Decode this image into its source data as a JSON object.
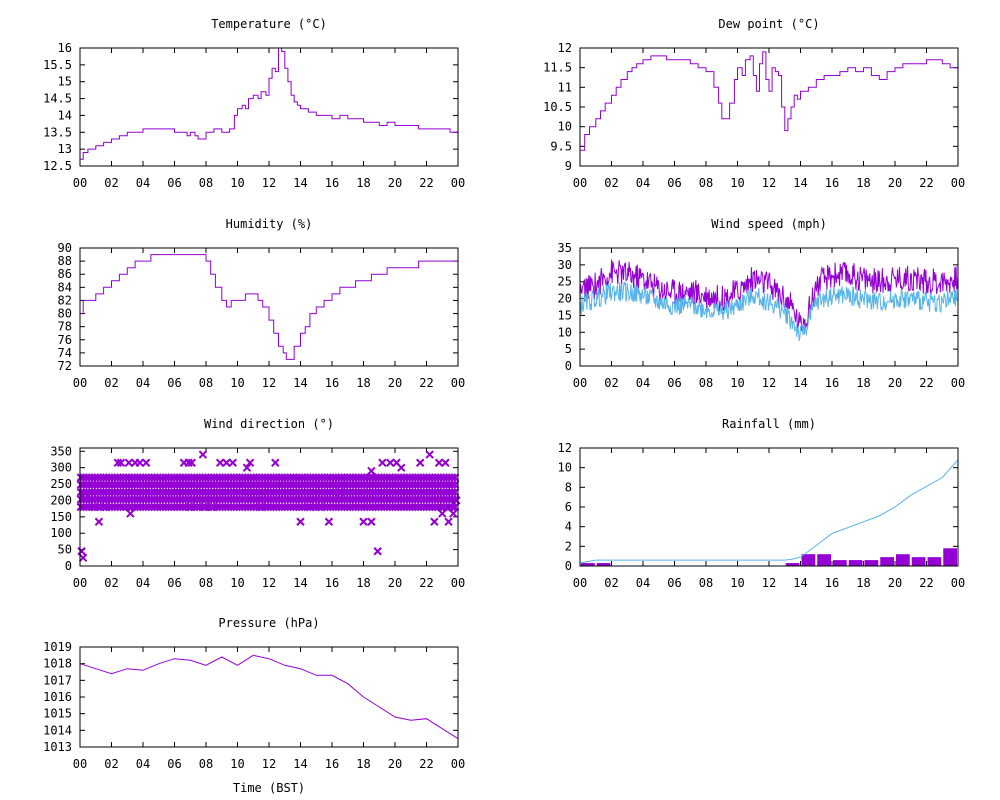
{
  "colors": {
    "primary": "#9400d3",
    "secondary": "#56b4e9",
    "axis": "#000000"
  },
  "chart_data": [
    {
      "id": "temperature",
      "type": "line",
      "title": "Temperature (°C)",
      "xlabel": "",
      "ylabel": "",
      "xlim": [
        0,
        24
      ],
      "xticks": [
        "00",
        "02",
        "04",
        "06",
        "08",
        "10",
        "12",
        "14",
        "16",
        "18",
        "20",
        "22",
        "00"
      ],
      "ylim": [
        12.5,
        16
      ],
      "yticks": [
        "12.5",
        "13",
        "13.5",
        "14",
        "14.5",
        "15",
        "15.5",
        "16"
      ],
      "ytick_values": [
        12.5,
        13,
        13.5,
        14,
        14.5,
        15,
        15.5,
        16
      ],
      "series": [
        {
          "name": "temperature",
          "style": "step",
          "color": "#9400d3",
          "x": [
            0,
            0.2,
            0.5,
            1.0,
            1.5,
            2.0,
            2.5,
            3.0,
            3.5,
            4.0,
            5.0,
            6.0,
            6.5,
            6.8,
            7.0,
            7.3,
            7.5,
            8.0,
            8.5,
            9.0,
            9.5,
            9.8,
            10.0,
            10.3,
            10.5,
            10.7,
            11.0,
            11.3,
            11.5,
            11.8,
            12.0,
            12.2,
            12.4,
            12.6,
            12.8,
            13.0,
            13.2,
            13.4,
            13.6,
            13.8,
            14.0,
            14.5,
            15.0,
            15.5,
            16.0,
            16.5,
            17.0,
            17.5,
            18.0,
            18.5,
            19.0,
            19.5,
            20.0,
            20.5,
            21.0,
            21.5,
            22.0,
            22.5,
            23.0,
            23.5,
            24.0
          ],
          "y": [
            12.7,
            12.9,
            13.0,
            13.1,
            13.2,
            13.3,
            13.4,
            13.5,
            13.5,
            13.6,
            13.6,
            13.5,
            13.5,
            13.4,
            13.5,
            13.4,
            13.3,
            13.5,
            13.6,
            13.5,
            13.6,
            14.0,
            14.2,
            14.3,
            14.2,
            14.5,
            14.6,
            14.5,
            14.7,
            14.6,
            15.1,
            15.4,
            15.3,
            16.0,
            15.9,
            15.4,
            15.0,
            14.6,
            14.4,
            14.3,
            14.2,
            14.1,
            14.0,
            14.0,
            13.9,
            14.0,
            13.9,
            13.9,
            13.8,
            13.8,
            13.7,
            13.8,
            13.7,
            13.7,
            13.7,
            13.6,
            13.6,
            13.6,
            13.6,
            13.5,
            13.6
          ]
        }
      ]
    },
    {
      "id": "dewpoint",
      "type": "line",
      "title": "Dew point (°C)",
      "xlabel": "",
      "ylabel": "",
      "xlim": [
        0,
        24
      ],
      "xticks": [
        "00",
        "02",
        "04",
        "06",
        "08",
        "10",
        "12",
        "14",
        "16",
        "18",
        "20",
        "22",
        "00"
      ],
      "ylim": [
        9,
        12
      ],
      "yticks": [
        "9",
        "9.5",
        "10",
        "10.5",
        "11",
        "11.5",
        "12"
      ],
      "ytick_values": [
        9,
        9.5,
        10,
        10.5,
        11,
        11.5,
        12
      ],
      "series": [
        {
          "name": "dewpoint",
          "style": "step",
          "color": "#9400d3",
          "x": [
            0,
            0.3,
            0.6,
            1.0,
            1.3,
            1.6,
            2.0,
            2.3,
            2.6,
            3.0,
            3.3,
            3.6,
            4.0,
            4.5,
            5.0,
            5.5,
            6.0,
            6.5,
            7.0,
            7.5,
            8.0,
            8.5,
            8.8,
            9.0,
            9.2,
            9.5,
            9.8,
            10.0,
            10.3,
            10.5,
            10.8,
            11.0,
            11.2,
            11.4,
            11.6,
            11.8,
            12.0,
            12.2,
            12.4,
            12.6,
            12.8,
            13.0,
            13.2,
            13.4,
            13.6,
            13.8,
            14.0,
            14.5,
            15.0,
            15.5,
            16.0,
            16.5,
            17.0,
            17.5,
            18.0,
            18.5,
            19.0,
            19.5,
            20.0,
            20.5,
            21.0,
            21.5,
            22.0,
            22.5,
            23.0,
            23.5,
            24.0
          ],
          "y": [
            9.4,
            9.8,
            10.0,
            10.2,
            10.4,
            10.6,
            10.8,
            11.0,
            11.2,
            11.4,
            11.5,
            11.6,
            11.7,
            11.8,
            11.8,
            11.7,
            11.7,
            11.7,
            11.6,
            11.5,
            11.4,
            11.0,
            10.6,
            10.2,
            10.2,
            10.6,
            11.2,
            11.5,
            11.3,
            11.7,
            11.8,
            11.3,
            10.9,
            11.6,
            11.9,
            11.2,
            10.9,
            11.5,
            11.4,
            11.3,
            10.5,
            9.9,
            10.2,
            10.5,
            10.8,
            10.7,
            10.9,
            11.0,
            11.2,
            11.3,
            11.3,
            11.4,
            11.5,
            11.4,
            11.5,
            11.3,
            11.2,
            11.4,
            11.5,
            11.6,
            11.6,
            11.6,
            11.7,
            11.7,
            11.6,
            11.5,
            11.8
          ]
        }
      ]
    },
    {
      "id": "humidity",
      "type": "line",
      "title": "Humidity (%)",
      "xlabel": "",
      "ylabel": "",
      "xlim": [
        0,
        24
      ],
      "xticks": [
        "00",
        "02",
        "04",
        "06",
        "08",
        "10",
        "12",
        "14",
        "16",
        "18",
        "20",
        "22",
        "00"
      ],
      "ylim": [
        72,
        90
      ],
      "yticks": [
        "72",
        "74",
        "76",
        "78",
        "80",
        "82",
        "84",
        "86",
        "88",
        "90"
      ],
      "ytick_values": [
        72,
        74,
        76,
        78,
        80,
        82,
        84,
        86,
        88,
        90
      ],
      "series": [
        {
          "name": "humidity",
          "style": "step",
          "color": "#9400d3",
          "x": [
            0,
            0.2,
            0.5,
            1.0,
            1.5,
            2.0,
            2.5,
            3.0,
            3.5,
            4.0,
            4.5,
            5.0,
            6.0,
            7.0,
            7.5,
            8.0,
            8.3,
            8.6,
            9.0,
            9.3,
            9.6,
            10.0,
            10.5,
            11.0,
            11.3,
            11.6,
            12.0,
            12.3,
            12.6,
            12.9,
            13.1,
            13.3,
            13.6,
            14.0,
            14.3,
            14.6,
            15.0,
            15.5,
            16.0,
            16.5,
            17.0,
            17.5,
            18.0,
            18.5,
            19.0,
            19.5,
            20.0,
            20.5,
            21.0,
            21.5,
            22.0,
            22.5,
            23.0,
            23.5,
            24.0
          ],
          "y": [
            80,
            82,
            82,
            83,
            84,
            85,
            86,
            87,
            88,
            88,
            89,
            89,
            89,
            89,
            89,
            88,
            86,
            84,
            82,
            81,
            82,
            82,
            83,
            83,
            82,
            81,
            79,
            77,
            75,
            74,
            73,
            73,
            75,
            77,
            78,
            80,
            81,
            82,
            83,
            84,
            84,
            85,
            85,
            86,
            86,
            87,
            87,
            87,
            87,
            88,
            88,
            88,
            88,
            88,
            89
          ]
        }
      ]
    },
    {
      "id": "windspeed",
      "type": "line",
      "title": "Wind speed (mph)",
      "xlabel": "",
      "ylabel": "",
      "xlim": [
        0,
        24
      ],
      "xticks": [
        "00",
        "02",
        "04",
        "06",
        "08",
        "10",
        "12",
        "14",
        "16",
        "18",
        "20",
        "22",
        "00"
      ],
      "ylim": [
        0,
        35
      ],
      "yticks": [
        "0",
        "5",
        "10",
        "15",
        "20",
        "25",
        "30",
        "35"
      ],
      "ytick_values": [
        0,
        5,
        10,
        15,
        20,
        25,
        30,
        35
      ],
      "series": [
        {
          "name": "gust",
          "color": "#9400d3",
          "noise": 4,
          "x": [
            0,
            1,
            2,
            3,
            4,
            5,
            6,
            7,
            8,
            9,
            10,
            11,
            12,
            13,
            13.5,
            14,
            14.5,
            15,
            16,
            17,
            18,
            19,
            20,
            21,
            22,
            23,
            24
          ],
          "y": [
            22,
            24,
            28,
            27,
            26,
            23,
            22,
            22,
            21,
            20,
            22,
            26,
            24,
            20,
            17,
            12,
            16,
            24,
            27,
            27,
            26,
            25,
            26,
            26,
            25,
            25,
            26
          ]
        },
        {
          "name": "speed",
          "color": "#56b4e9",
          "noise": 3,
          "x": [
            0,
            1,
            2,
            3,
            4,
            5,
            6,
            7,
            8,
            9,
            10,
            11,
            12,
            13,
            13.5,
            14,
            14.5,
            15,
            16,
            17,
            18,
            19,
            20,
            21,
            22,
            23,
            24
          ],
          "y": [
            18,
            20,
            22,
            22,
            21,
            19,
            18,
            18,
            17,
            16,
            18,
            21,
            19,
            16,
            13,
            9,
            13,
            19,
            21,
            21,
            20,
            19,
            20,
            20,
            19,
            19,
            20
          ]
        }
      ]
    },
    {
      "id": "winddirection",
      "type": "scatter",
      "title": "Wind direction (°)",
      "xlabel": "",
      "ylabel": "",
      "xlim": [
        0,
        24
      ],
      "xticks": [
        "00",
        "02",
        "04",
        "06",
        "08",
        "10",
        "12",
        "14",
        "16",
        "18",
        "20",
        "22",
        "00"
      ],
      "ylim": [
        0,
        360
      ],
      "yticks": [
        "0",
        "50",
        "100",
        "150",
        "200",
        "250",
        "300",
        "350"
      ],
      "ytick_values": [
        0,
        50,
        100,
        150,
        200,
        250,
        300,
        350
      ],
      "bands": [
        180,
        203,
        225,
        248,
        270
      ],
      "points": [
        [
          0.1,
          45
        ],
        [
          0.2,
          25
        ],
        [
          0.3,
          205
        ],
        [
          0.9,
          180
        ],
        [
          1.2,
          135
        ],
        [
          1.6,
          180
        ],
        [
          2.4,
          315
        ],
        [
          2.6,
          315
        ],
        [
          3.1,
          315
        ],
        [
          3.5,
          315
        ],
        [
          3.8,
          315
        ],
        [
          4.2,
          315
        ],
        [
          3.2,
          160
        ],
        [
          5.1,
          180
        ],
        [
          6.6,
          315
        ],
        [
          6.9,
          315
        ],
        [
          7.1,
          315
        ],
        [
          7.0,
          180
        ],
        [
          7.8,
          340
        ],
        [
          7.9,
          180
        ],
        [
          8.4,
          180
        ],
        [
          8.9,
          315
        ],
        [
          9.3,
          315
        ],
        [
          9.7,
          315
        ],
        [
          10.6,
          300
        ],
        [
          10.8,
          315
        ],
        [
          11.5,
          180
        ],
        [
          12.1,
          180
        ],
        [
          12.4,
          315
        ],
        [
          14.0,
          135
        ],
        [
          14.6,
          180
        ],
        [
          15.3,
          180
        ],
        [
          15.8,
          135
        ],
        [
          16.5,
          225
        ],
        [
          18.0,
          135
        ],
        [
          18.5,
          135
        ],
        [
          18.9,
          45
        ],
        [
          18.5,
          290
        ],
        [
          19.2,
          315
        ],
        [
          19.7,
          315
        ],
        [
          20.1,
          315
        ],
        [
          20.4,
          300
        ],
        [
          21.6,
          315
        ],
        [
          22.2,
          340
        ],
        [
          22.5,
          135
        ],
        [
          22.8,
          315
        ],
        [
          23.2,
          315
        ],
        [
          23.0,
          160
        ],
        [
          23.4,
          135
        ],
        [
          23.7,
          160
        ],
        [
          23.9,
          200
        ]
      ]
    },
    {
      "id": "rainfall",
      "type": "bar",
      "title": "Rainfall (mm)",
      "xlabel": "",
      "ylabel": "",
      "xlim": [
        0,
        24
      ],
      "xticks": [
        "00",
        "02",
        "04",
        "06",
        "08",
        "10",
        "12",
        "14",
        "16",
        "18",
        "20",
        "22",
        "00"
      ],
      "ylim": [
        0,
        12
      ],
      "yticks": [
        "0",
        "2",
        "4",
        "6",
        "8",
        "10",
        "12"
      ],
      "ytick_values": [
        0,
        2,
        4,
        6,
        8,
        10,
        12
      ],
      "bars": [
        {
          "x": 0,
          "value": 0.3
        },
        {
          "x": 1,
          "value": 0.3
        },
        {
          "x": 13,
          "value": 0.3
        },
        {
          "x": 14,
          "value": 1.2
        },
        {
          "x": 15,
          "value": 1.2
        },
        {
          "x": 16,
          "value": 0.6
        },
        {
          "x": 17,
          "value": 0.6
        },
        {
          "x": 18,
          "value": 0.6
        },
        {
          "x": 19,
          "value": 0.9
        },
        {
          "x": 20,
          "value": 1.2
        },
        {
          "x": 21,
          "value": 0.9
        },
        {
          "x": 22,
          "value": 0.9
        },
        {
          "x": 23,
          "value": 1.8
        }
      ],
      "series": [
        {
          "name": "cumulative",
          "color": "#56b4e9",
          "x": [
            0,
            1,
            2,
            13,
            13.5,
            14,
            15,
            16,
            17,
            18,
            19,
            20,
            21,
            22,
            23,
            24
          ],
          "y": [
            0.3,
            0.6,
            0.6,
            0.6,
            0.7,
            0.9,
            2.1,
            3.3,
            3.9,
            4.5,
            5.1,
            6.0,
            7.2,
            8.1,
            9.0,
            10.8
          ]
        }
      ]
    },
    {
      "id": "pressure",
      "type": "line",
      "title": "Pressure (hPa)",
      "xlabel": "Time (BST)",
      "ylabel": "",
      "xlim": [
        0,
        24
      ],
      "xticks": [
        "00",
        "02",
        "04",
        "06",
        "08",
        "10",
        "12",
        "14",
        "16",
        "18",
        "20",
        "22",
        "00"
      ],
      "ylim": [
        1013,
        1019
      ],
      "yticks": [
        "1013",
        "1014",
        "1015",
        "1016",
        "1017",
        "1018",
        "1019"
      ],
      "ytick_values": [
        1013,
        1014,
        1015,
        1016,
        1017,
        1018,
        1019
      ],
      "series": [
        {
          "name": "pressure",
          "color": "#9400d3",
          "x": [
            0,
            1,
            2,
            3,
            4,
            5,
            6,
            7,
            8,
            9,
            10,
            11,
            12,
            13,
            14,
            15,
            16,
            17,
            18,
            19,
            20,
            21,
            22,
            23,
            24
          ],
          "y": [
            1018.0,
            1017.7,
            1017.4,
            1017.7,
            1017.6,
            1018.0,
            1018.3,
            1018.2,
            1017.9,
            1018.4,
            1017.9,
            1018.5,
            1018.3,
            1017.9,
            1017.7,
            1017.3,
            1017.3,
            1016.8,
            1016.0,
            1015.4,
            1014.8,
            1014.6,
            1014.7,
            1014.1,
            1013.5
          ]
        }
      ]
    }
  ]
}
